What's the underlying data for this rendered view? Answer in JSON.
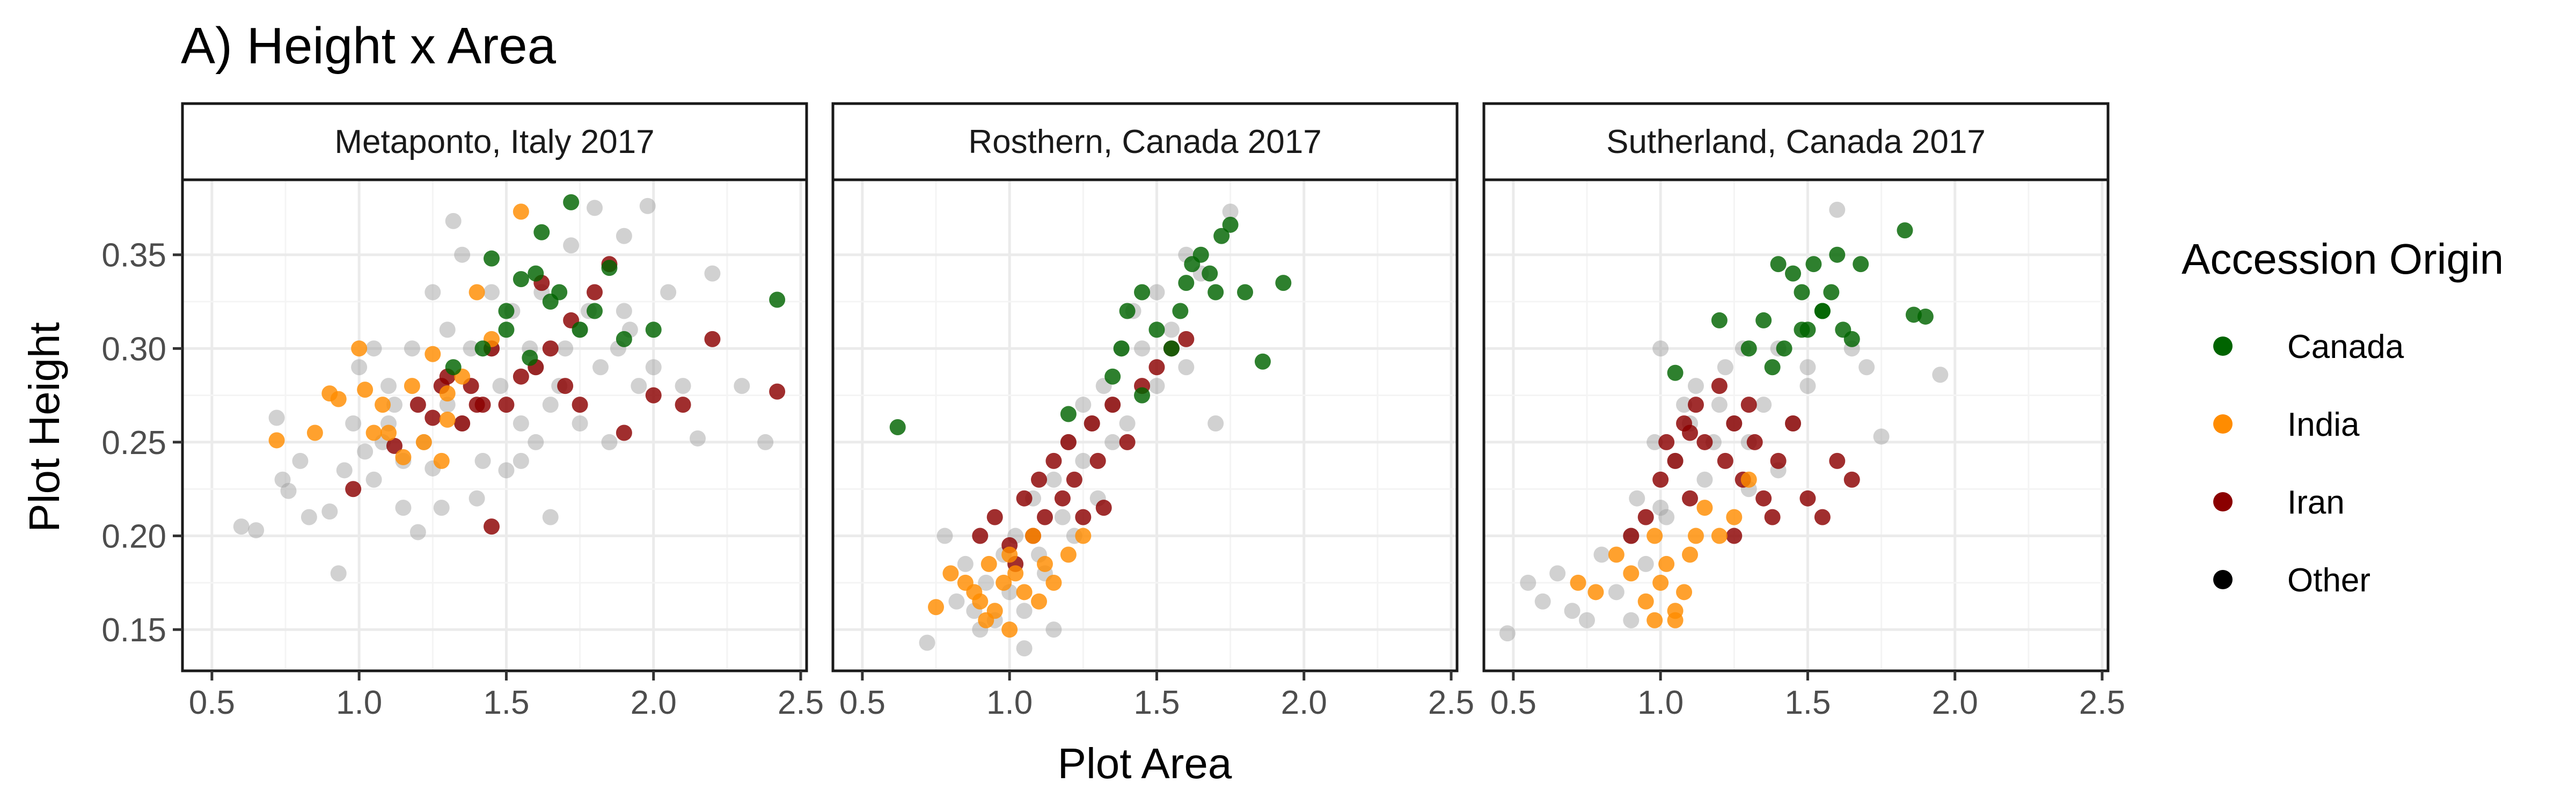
{
  "chart_data": {
    "type": "scatter",
    "title": "A) Height x Area",
    "xlabel": "Plot Area",
    "ylabel": "Plot Height",
    "xlim": [
      0.4,
      2.52
    ],
    "ylim": [
      0.128,
      0.39
    ],
    "x_ticks": [
      "0.5",
      "1.0",
      "1.5",
      "2.0",
      "2.5"
    ],
    "y_ticks": [
      "0.15",
      "0.20",
      "0.25",
      "0.30",
      "0.35"
    ],
    "x_tick_values": [
      0.5,
      1.0,
      1.5,
      2.0,
      2.5
    ],
    "y_tick_values": [
      0.15,
      0.2,
      0.25,
      0.3,
      0.35
    ],
    "grid": true,
    "legend": {
      "title": "Accession Origin",
      "placement": "right",
      "entries": [
        {
          "label": "Canada",
          "color": "#006400"
        },
        {
          "label": "India",
          "color": "#ff8c00"
        },
        {
          "label": "Iran",
          "color": "#8b0000"
        },
        {
          "label": "Other",
          "color": "#000000"
        }
      ]
    },
    "panels": [
      {
        "name": "Metaponto, Italy 2017",
        "series": [
          {
            "name": "Other",
            "color": "#999999",
            "x": [
              0.6,
              0.65,
              0.72,
              0.74,
              0.76,
              0.8,
              0.83,
              0.9,
              0.93,
              0.95,
              0.98,
              1.0,
              1.02,
              1.05,
              1.08,
              1.1,
              1.12,
              1.15,
              1.18,
              1.2,
              1.22,
              1.25,
              1.28,
              1.3,
              1.32,
              1.35,
              1.38,
              1.4,
              1.42,
              1.45,
              1.48,
              1.5,
              1.52,
              1.55,
              1.58,
              1.6,
              1.62,
              1.65,
              1.68,
              1.7,
              1.72,
              1.75,
              1.78,
              1.8,
              1.82,
              1.85,
              1.88,
              1.9,
              1.92,
              1.95,
              1.98,
              2.0,
              2.05,
              2.1,
              2.15,
              2.2,
              2.3,
              2.38,
              1.3,
              1.1,
              1.45,
              1.6,
              1.25,
              1.75,
              1.55,
              1.35,
              1.65,
              1.05,
              1.9,
              1.15
            ],
            "y": [
              0.205,
              0.203,
              0.263,
              0.23,
              0.224,
              0.24,
              0.21,
              0.213,
              0.18,
              0.235,
              0.26,
              0.29,
              0.245,
              0.23,
              0.25,
              0.28,
              0.27,
              0.215,
              0.3,
              0.202,
              0.25,
              0.236,
              0.215,
              0.31,
              0.368,
              0.26,
              0.3,
              0.22,
              0.24,
              0.33,
              0.28,
              0.235,
              0.32,
              0.26,
              0.3,
              0.25,
              0.33,
              0.21,
              0.28,
              0.3,
              0.355,
              0.26,
              0.32,
              0.375,
              0.29,
              0.25,
              0.3,
              0.36,
              0.31,
              0.28,
              0.376,
              0.29,
              0.33,
              0.28,
              0.252,
              0.34,
              0.28,
              0.25,
              0.27,
              0.26,
              0.3,
              0.29,
              0.33,
              0.31,
              0.24,
              0.35,
              0.27,
              0.3,
              0.32,
              0.24
            ]
          },
          {
            "name": "India",
            "color": "#ff8c00",
            "x": [
              0.72,
              0.85,
              0.9,
              0.93,
              1.0,
              1.02,
              1.05,
              1.08,
              1.1,
              1.15,
              1.18,
              1.22,
              1.25,
              1.28,
              1.3,
              1.35,
              1.4,
              1.45,
              1.55,
              1.3
            ],
            "y": [
              0.251,
              0.255,
              0.276,
              0.273,
              0.3,
              0.278,
              0.255,
              0.27,
              0.255,
              0.242,
              0.28,
              0.25,
              0.297,
              0.24,
              0.276,
              0.285,
              0.33,
              0.305,
              0.373,
              0.262
            ]
          },
          {
            "name": "Iran",
            "color": "#8b0000",
            "x": [
              0.98,
              1.12,
              1.2,
              1.25,
              1.3,
              1.35,
              1.38,
              1.42,
              1.45,
              1.5,
              1.55,
              1.6,
              1.65,
              1.7,
              1.75,
              1.8,
              1.85,
              1.9,
              2.0,
              2.1,
              2.2,
              2.42,
              1.45,
              1.28,
              1.62,
              1.72,
              1.4
            ],
            "y": [
              0.225,
              0.248,
              0.27,
              0.263,
              0.285,
              0.26,
              0.28,
              0.27,
              0.205,
              0.27,
              0.285,
              0.29,
              0.3,
              0.28,
              0.27,
              0.33,
              0.345,
              0.255,
              0.275,
              0.27,
              0.305,
              0.277,
              0.3,
              0.28,
              0.335,
              0.315,
              0.27
            ]
          },
          {
            "name": "Canada",
            "color": "#006400",
            "x": [
              1.32,
              1.45,
              1.5,
              1.55,
              1.58,
              1.62,
              1.65,
              1.68,
              1.72,
              1.75,
              1.8,
              1.85,
              1.9,
              2.0,
              2.42,
              1.5,
              1.42,
              1.6
            ],
            "y": [
              0.29,
              0.348,
              0.32,
              0.337,
              0.295,
              0.362,
              0.325,
              0.33,
              0.378,
              0.31,
              0.32,
              0.343,
              0.305,
              0.31,
              0.326,
              0.31,
              0.3,
              0.34
            ]
          }
        ]
      },
      {
        "name": "Rosthern, Canada 2017",
        "series": [
          {
            "name": "Other",
            "color": "#999999",
            "x": [
              0.72,
              0.78,
              0.82,
              0.85,
              0.88,
              0.9,
              0.92,
              0.95,
              0.98,
              1.0,
              1.02,
              1.05,
              1.08,
              1.1,
              1.12,
              1.15,
              1.18,
              1.2,
              1.22,
              1.25,
              1.28,
              1.3,
              1.32,
              1.35,
              1.38,
              1.4,
              1.42,
              1.45,
              1.5,
              1.55,
              1.6,
              1.65,
              1.7,
              1.75,
              1.6,
              1.5,
              1.35,
              1.25,
              1.15,
              1.05
            ],
            "y": [
              0.143,
              0.2,
              0.165,
              0.185,
              0.16,
              0.15,
              0.175,
              0.155,
              0.19,
              0.17,
              0.2,
              0.16,
              0.22,
              0.19,
              0.18,
              0.23,
              0.21,
              0.25,
              0.2,
              0.24,
              0.26,
              0.22,
              0.28,
              0.27,
              0.3,
              0.26,
              0.32,
              0.3,
              0.33,
              0.31,
              0.35,
              0.34,
              0.26,
              0.373,
              0.29,
              0.28,
              0.25,
              0.27,
              0.15,
              0.14
            ]
          },
          {
            "name": "India",
            "color": "#ff8c00",
            "x": [
              0.75,
              0.8,
              0.85,
              0.88,
              0.9,
              0.93,
              0.95,
              0.98,
              1.0,
              1.02,
              1.05,
              1.08,
              1.1,
              1.12,
              1.15,
              1.2,
              1.25,
              0.92,
              1.0
            ],
            "y": [
              0.162,
              0.18,
              0.175,
              0.17,
              0.165,
              0.185,
              0.16,
              0.175,
              0.19,
              0.18,
              0.17,
              0.2,
              0.165,
              0.185,
              0.175,
              0.19,
              0.2,
              0.155,
              0.15
            ]
          },
          {
            "name": "Iran",
            "color": "#8b0000",
            "x": [
              0.9,
              0.95,
              1.0,
              1.05,
              1.08,
              1.1,
              1.12,
              1.15,
              1.18,
              1.2,
              1.22,
              1.25,
              1.28,
              1.3,
              1.35,
              1.4,
              1.45,
              1.5,
              1.55,
              1.6,
              1.02,
              1.32
            ],
            "y": [
              0.2,
              0.21,
              0.195,
              0.22,
              0.2,
              0.23,
              0.21,
              0.24,
              0.22,
              0.25,
              0.23,
              0.21,
              0.26,
              0.24,
              0.27,
              0.25,
              0.28,
              0.29,
              0.3,
              0.305,
              0.185,
              0.215
            ]
          },
          {
            "name": "Canada",
            "color": "#006400",
            "x": [
              0.62,
              1.2,
              1.35,
              1.4,
              1.45,
              1.5,
              1.55,
              1.58,
              1.6,
              1.62,
              1.65,
              1.68,
              1.7,
              1.72,
              1.75,
              1.8,
              1.86,
              1.93,
              1.45,
              1.38
            ],
            "y": [
              0.258,
              0.265,
              0.285,
              0.32,
              0.33,
              0.31,
              0.3,
              0.32,
              0.335,
              0.345,
              0.35,
              0.34,
              0.33,
              0.36,
              0.366,
              0.33,
              0.293,
              0.335,
              0.275,
              0.3
            ]
          }
        ]
      },
      {
        "name": "Sutherland, Canada 2017",
        "series": [
          {
            "name": "Other",
            "color": "#999999",
            "x": [
              0.48,
              0.55,
              0.6,
              0.65,
              0.7,
              0.75,
              0.8,
              0.85,
              0.9,
              0.92,
              0.95,
              0.98,
              1.0,
              1.02,
              1.05,
              1.08,
              1.1,
              1.12,
              1.15,
              1.18,
              1.2,
              1.22,
              1.25,
              1.28,
              1.3,
              1.35,
              1.4,
              1.45,
              1.5,
              1.55,
              1.6,
              1.65,
              1.7,
              1.75,
              1.95,
              1.0,
              0.9,
              1.3,
              1.4,
              1.5
            ],
            "y": [
              0.148,
              0.175,
              0.165,
              0.18,
              0.16,
              0.155,
              0.19,
              0.17,
              0.2,
              0.22,
              0.185,
              0.25,
              0.3,
              0.21,
              0.24,
              0.27,
              0.26,
              0.28,
              0.23,
              0.25,
              0.27,
              0.29,
              0.26,
              0.3,
              0.25,
              0.27,
              0.3,
              0.26,
              0.28,
              0.32,
              0.374,
              0.3,
              0.29,
              0.253,
              0.286,
              0.215,
              0.155,
              0.225,
              0.235,
              0.29
            ]
          },
          {
            "name": "India",
            "color": "#ff8c00",
            "x": [
              0.72,
              0.78,
              0.85,
              0.9,
              0.95,
              0.98,
              1.0,
              1.02,
              1.05,
              1.08,
              1.1,
              1.12,
              1.15,
              1.2,
              1.25,
              1.3,
              0.98,
              1.05
            ],
            "y": [
              0.175,
              0.17,
              0.19,
              0.18,
              0.165,
              0.2,
              0.175,
              0.185,
              0.16,
              0.17,
              0.19,
              0.2,
              0.215,
              0.2,
              0.21,
              0.23,
              0.155,
              0.155
            ]
          },
          {
            "name": "Iran",
            "color": "#8b0000",
            "x": [
              0.9,
              0.95,
              1.0,
              1.02,
              1.05,
              1.08,
              1.1,
              1.12,
              1.15,
              1.2,
              1.22,
              1.25,
              1.28,
              1.3,
              1.32,
              1.35,
              1.38,
              1.4,
              1.45,
              1.5,
              1.55,
              1.6,
              1.65,
              1.1,
              1.25
            ],
            "y": [
              0.2,
              0.21,
              0.23,
              0.25,
              0.24,
              0.26,
              0.22,
              0.27,
              0.25,
              0.28,
              0.24,
              0.26,
              0.23,
              0.27,
              0.25,
              0.22,
              0.21,
              0.24,
              0.26,
              0.22,
              0.21,
              0.24,
              0.23,
              0.255,
              0.2
            ]
          },
          {
            "name": "Canada",
            "color": "#006400",
            "x": [
              1.05,
              1.2,
              1.3,
              1.35,
              1.4,
              1.42,
              1.45,
              1.48,
              1.5,
              1.52,
              1.55,
              1.58,
              1.6,
              1.62,
              1.65,
              1.68,
              1.83,
              1.86,
              1.9,
              1.55,
              1.38,
              1.48
            ],
            "y": [
              0.287,
              0.315,
              0.3,
              0.315,
              0.345,
              0.3,
              0.34,
              0.33,
              0.31,
              0.345,
              0.32,
              0.33,
              0.35,
              0.31,
              0.305,
              0.345,
              0.363,
              0.318,
              0.317,
              0.32,
              0.29,
              0.31
            ]
          }
        ]
      }
    ]
  }
}
